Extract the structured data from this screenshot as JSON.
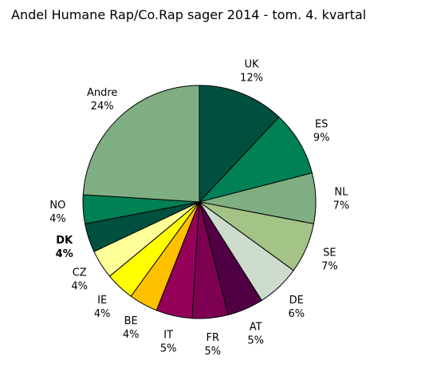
{
  "chart_data": {
    "type": "pie",
    "title": "Andel Humane Rap/Co.Rap sager 2014 - tom. 4. kvartal",
    "start_angle_deg": 0,
    "direction": "clockwise",
    "slices": [
      {
        "label": "UK",
        "value_label": "12%",
        "value": 12,
        "color": "#005040",
        "bold": false
      },
      {
        "label": "ES",
        "value_label": "9%",
        "value": 9,
        "color": "#008055",
        "bold": false
      },
      {
        "label": "NL",
        "value_label": "7%",
        "value": 7,
        "color": "#80ae83",
        "bold": false
      },
      {
        "label": "SE",
        "value_label": "7%",
        "value": 7,
        "color": "#a3c387",
        "bold": false
      },
      {
        "label": "DE",
        "value_label": "6%",
        "value": 6,
        "color": "#cedcce",
        "bold": false
      },
      {
        "label": "AT",
        "value_label": "5%",
        "value": 5,
        "color": "#520045",
        "bold": false
      },
      {
        "label": "FR",
        "value_label": "5%",
        "value": 5,
        "color": "#7d0051",
        "bold": false
      },
      {
        "label": "IT",
        "value_label": "5%",
        "value": 5,
        "color": "#950059",
        "bold": false
      },
      {
        "label": "BE",
        "value_label": "4%",
        "value": 4,
        "color": "#ffc000",
        "bold": false
      },
      {
        "label": "IE",
        "value_label": "4%",
        "value": 4,
        "color": "#ffff00",
        "bold": false
      },
      {
        "label": "CZ",
        "value_label": "4%",
        "value": 4,
        "color": "#ffff99",
        "bold": false
      },
      {
        "label": "DK",
        "value_label": "4%",
        "value": 4,
        "color": "#005040",
        "bold": true
      },
      {
        "label": "NO",
        "value_label": "4%",
        "value": 4,
        "color": "#008055",
        "bold": false
      },
      {
        "label": "Andre",
        "value_label": "24%",
        "value": 24,
        "color": "#80ae83",
        "bold": false
      }
    ]
  }
}
